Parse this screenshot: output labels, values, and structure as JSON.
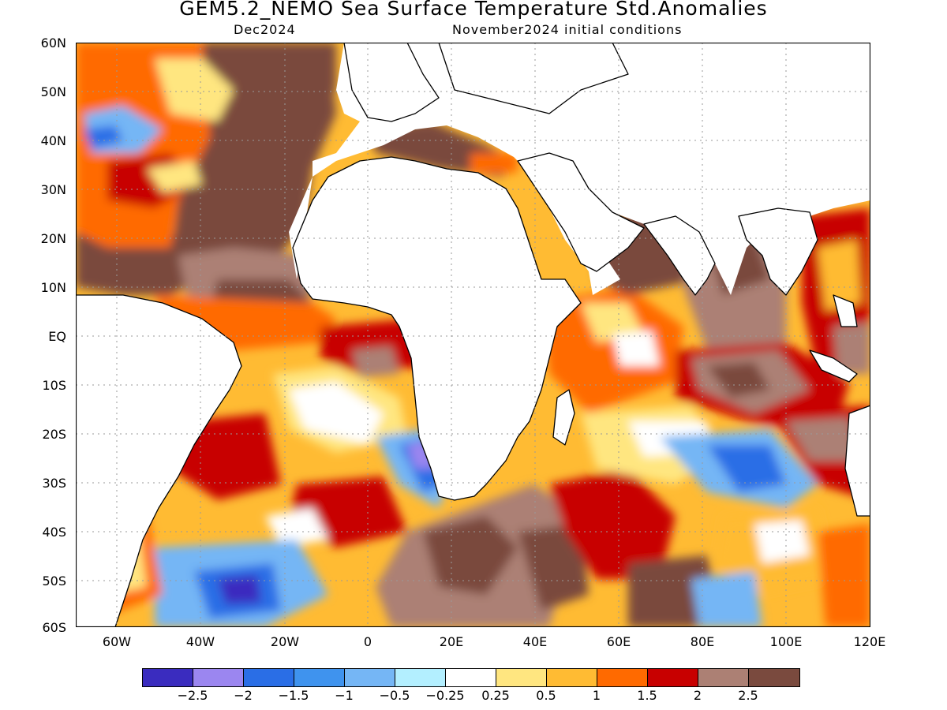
{
  "title": "GEM5.2_NEMO Sea Surface Temperature Std.Anomalies",
  "subtitle_left": "Dec2024",
  "subtitle_right": "November2024 initial conditions",
  "lat_labels": [
    "60N",
    "50N",
    "40N",
    "30N",
    "20N",
    "10N",
    "EQ",
    "10S",
    "20S",
    "30S",
    "40S",
    "50S",
    "60S"
  ],
  "lon_labels": [
    "60W",
    "40W",
    "20W",
    "0",
    "20E",
    "40E",
    "60E",
    "80E",
    "100E",
    "120E"
  ],
  "colorbar": {
    "colors": [
      "#3a2cbf",
      "#9b86f0",
      "#2a6ee6",
      "#3f93ee",
      "#75b6f5",
      "#b3efff",
      "#ffffff",
      "#ffe680",
      "#ffbb33",
      "#ff6a00",
      "#c80000",
      "#ac8074",
      "#7a4a3e"
    ],
    "labels": [
      "-2.5",
      "-2",
      "-1.5",
      "-1",
      "-0.5",
      "-0.25",
      "0.25",
      "0.5",
      "1",
      "1.5",
      "2",
      "2.5"
    ]
  }
}
